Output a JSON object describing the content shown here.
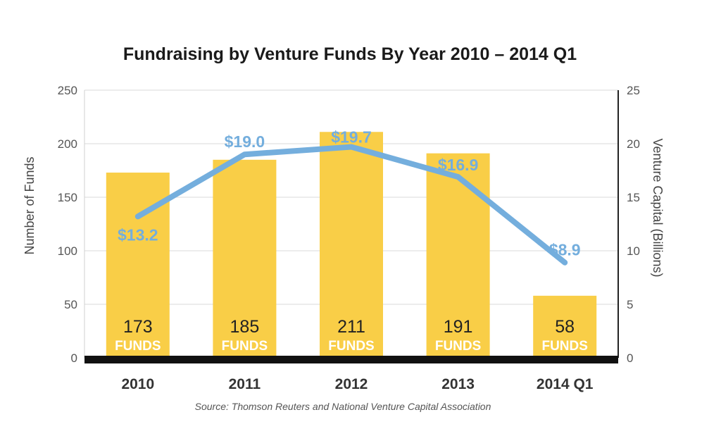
{
  "chart_data": {
    "type": "bar",
    "title": "Fundraising by Venture Funds By Year 2010 – 2014 Q1",
    "categories": [
      "2010",
      "2011",
      "2012",
      "2013",
      "2014 Q1"
    ],
    "series": [
      {
        "name": "Number of Funds",
        "type": "bar",
        "axis": "left",
        "values": [
          173,
          185,
          211,
          191,
          58
        ],
        "unit_label": "FUNDS",
        "color": "#F9CE47"
      },
      {
        "name": "Venture Capital (Billions)",
        "type": "line",
        "axis": "right",
        "values": [
          13.2,
          19.0,
          19.7,
          16.9,
          8.9
        ],
        "labels": [
          "$13.2",
          "$19.0",
          "$19.7",
          "$16.9",
          "$8.9"
        ],
        "color": "#74AEDD"
      }
    ],
    "y_left": {
      "label": "Number of Funds",
      "range": [
        0,
        250
      ],
      "ticks": [
        "0",
        "50",
        "100",
        "150",
        "200",
        "250"
      ]
    },
    "y_right": {
      "label": "Venture Capital (Billions)",
      "range": [
        0,
        25
      ],
      "ticks": [
        "0",
        "5",
        "10",
        "15",
        "20",
        "25"
      ]
    },
    "grid": true,
    "source": "Source: Thomson Reuters and National Venture Capital Association"
  }
}
